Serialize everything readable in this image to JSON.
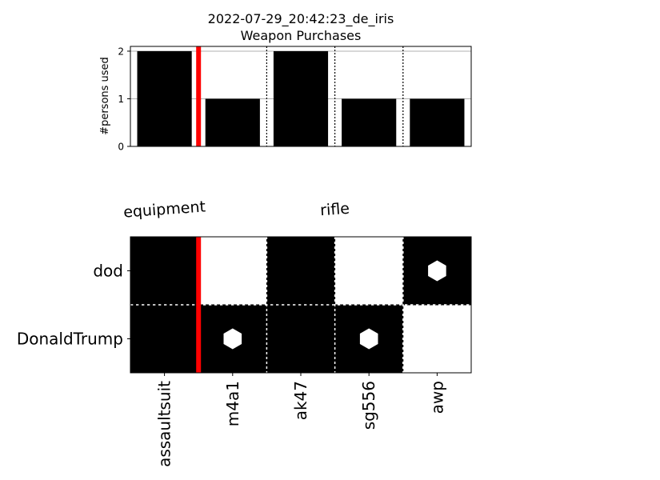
{
  "chart_data": [
    {
      "type": "bar",
      "title": "2022-07-29_20:42:23_de_iris",
      "subtitle": "Weapon Purchases",
      "ylabel": "#persons used",
      "xlabel": "",
      "categories": [
        "assaultsuit",
        "m4a1",
        "ak47",
        "sg556",
        "awp"
      ],
      "values": [
        2,
        1,
        2,
        1,
        1
      ],
      "ylim": [
        0,
        2.1
      ],
      "yticks": [
        0,
        1,
        2
      ],
      "grid": true,
      "bar_color": "#000000",
      "separator_color": "#ff0000"
    },
    {
      "type": "heatmap",
      "group_labels": [
        {
          "label": "equipment",
          "start": 0,
          "end": 0
        },
        {
          "label": "rifle",
          "start": 1,
          "end": 4
        }
      ],
      "rows": [
        "dod",
        "DonaldTrump"
      ],
      "columns": [
        "assaultsuit",
        "m4a1",
        "ak47",
        "sg556",
        "awp"
      ],
      "cells": [
        [
          1,
          0,
          1,
          0,
          1
        ],
        [
          1,
          1,
          1,
          1,
          0
        ]
      ],
      "markers": [
        [
          0,
          0,
          0,
          0,
          1
        ],
        [
          0,
          1,
          0,
          1,
          0
        ]
      ],
      "marker_shape": "hexagon",
      "colors": {
        "filled": "#000000",
        "empty": "#ffffff",
        "marker": "#ffffff",
        "separator": "#ff0000"
      }
    }
  ]
}
